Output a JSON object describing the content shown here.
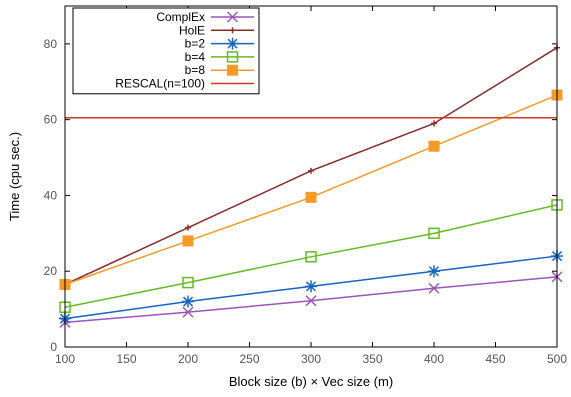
{
  "chart_data": {
    "type": "line",
    "xlabel": "Block size (b) × Vec size (m)",
    "ylabel": "Time (cpu sec.)",
    "xlim": [
      100,
      500
    ],
    "ylim": [
      0,
      90
    ],
    "x_ticks": [
      100,
      150,
      200,
      250,
      300,
      350,
      400,
      450,
      500
    ],
    "y_ticks": [
      0,
      20,
      40,
      60,
      80
    ],
    "grid": false,
    "legend_position": "top-left",
    "series": [
      {
        "name": "ComplEx",
        "x": [
          100,
          200,
          300,
          400,
          500
        ],
        "y": [
          6.5,
          9.2,
          12.2,
          15.5,
          18.5
        ],
        "color": "#9955bb",
        "marker": "x"
      },
      {
        "name": "HolE",
        "x": [
          100,
          200,
          300,
          400,
          500
        ],
        "y": [
          16.5,
          31.5,
          46.5,
          59,
          79
        ],
        "color": "#8b2a2a",
        "marker": "plus"
      },
      {
        "name": "b=2",
        "x": [
          100,
          200,
          300,
          400,
          500
        ],
        "y": [
          7.5,
          12,
          16,
          20,
          24
        ],
        "color": "#1565c0",
        "marker": "star"
      },
      {
        "name": "b=4",
        "x": [
          100,
          200,
          300,
          400,
          500
        ],
        "y": [
          10.5,
          17,
          23.8,
          30,
          37.5
        ],
        "color": "#66bb22",
        "marker": "square-open"
      },
      {
        "name": "b=8",
        "x": [
          100,
          200,
          300,
          400,
          500
        ],
        "y": [
          16.5,
          28,
          39.5,
          53,
          66.5
        ],
        "color": "#f59a27",
        "marker": "square-filled"
      },
      {
        "name": "RESCAL(n=100)",
        "x": [
          100,
          500
        ],
        "y": [
          60.5,
          60.5
        ],
        "color": "#cc3b1f",
        "marker": "none"
      }
    ]
  }
}
